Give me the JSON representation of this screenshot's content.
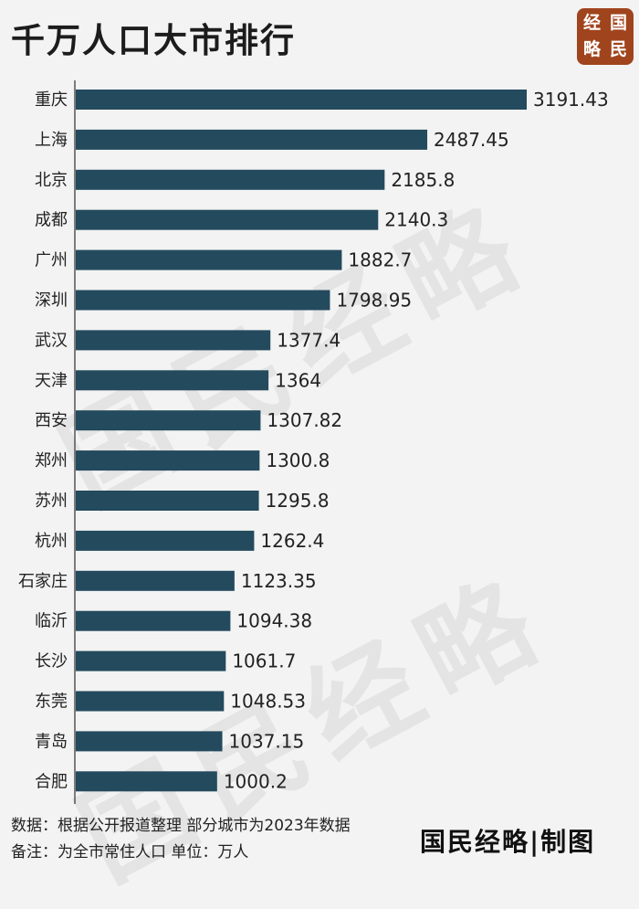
{
  "title": "千万人口大市排行",
  "logo": [
    "经",
    "国",
    "略",
    "民"
  ],
  "watermark": "国民经略",
  "footer": {
    "source": "数据：根据公开报道整理 部分城市为2023年数据",
    "note": "备注：为全市常住人口  单位：万人"
  },
  "brand": "国民经略|制图",
  "colors": {
    "bar": "#244a5e",
    "logo_bg": "#a0441d",
    "background": "#f2f3f2"
  },
  "chart_data": {
    "type": "bar",
    "orientation": "horizontal",
    "title": "千万人口大市排行",
    "unit": "万人",
    "categories": [
      "重庆",
      "上海",
      "北京",
      "成都",
      "广州",
      "深圳",
      "武汉",
      "天津",
      "西安",
      "郑州",
      "苏州",
      "杭州",
      "石家庄",
      "临沂",
      "长沙",
      "东莞",
      "青岛",
      "合肥"
    ],
    "values": [
      3191.43,
      2487.45,
      2185.8,
      2140.3,
      1882.7,
      1798.95,
      1377.4,
      1364,
      1307.82,
      1300.8,
      1295.8,
      1262.4,
      1123.35,
      1094.38,
      1061.7,
      1048.53,
      1037.15,
      1000.2
    ],
    "value_labels": [
      "3191.43",
      "2487.45",
      "2185.8",
      "2140.3",
      "1882.7",
      "1798.95",
      "1377.4",
      "1364",
      "1307.82",
      "1300.8",
      "1295.8",
      "1262.4",
      "1123.35",
      "1094.38",
      "1061.7",
      "1048.53",
      "1037.15",
      "1000.2"
    ],
    "xlim": [
      0,
      3191.43
    ],
    "grid": false,
    "legend": "none"
  }
}
